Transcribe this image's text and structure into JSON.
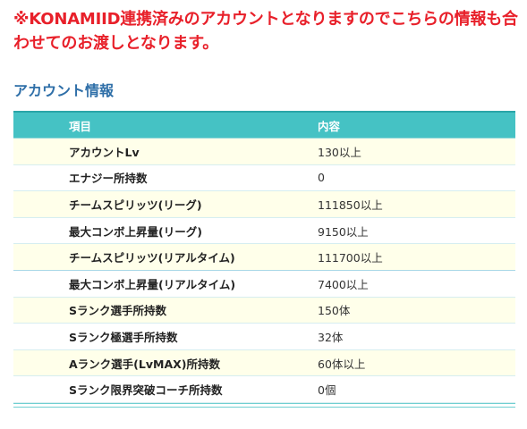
{
  "notice": "※KONAMIID連携済みのアカウントとなりますのでこちらの情報も合わせてのお渡しとなります。",
  "section_title": "アカウント情報",
  "table": {
    "headers": {
      "item": "項目",
      "content": "内容"
    },
    "rows": [
      {
        "item": "アカウントLv",
        "content": "130以上"
      },
      {
        "item": "エナジー所持数",
        "content": "0"
      },
      {
        "item": "チームスピリッツ(リーグ)",
        "content": "111850以上"
      },
      {
        "item": "最大コンボ上昇量(リーグ)",
        "content": "9150以上"
      },
      {
        "item": "チームスピリッツ(リアルタイム)",
        "content": "111700以上"
      },
      {
        "item": "最大コンボ上昇量(リアルタイム)",
        "content": "7400以上"
      },
      {
        "item": "Sランク選手所持数",
        "content": "150体"
      },
      {
        "item": "Sランク極選手所持数",
        "content": "32体"
      },
      {
        "item": "Aランク選手(LvMAX)所持数",
        "content": "60体以上"
      },
      {
        "item": "Sランク限界突破コーチ所持数",
        "content": "0個"
      }
    ]
  },
  "colors": {
    "notice": "#e8202a",
    "title": "#2f6fa8",
    "header_bg": "#45c2c4",
    "row_alt_bg": "#ffffea"
  }
}
